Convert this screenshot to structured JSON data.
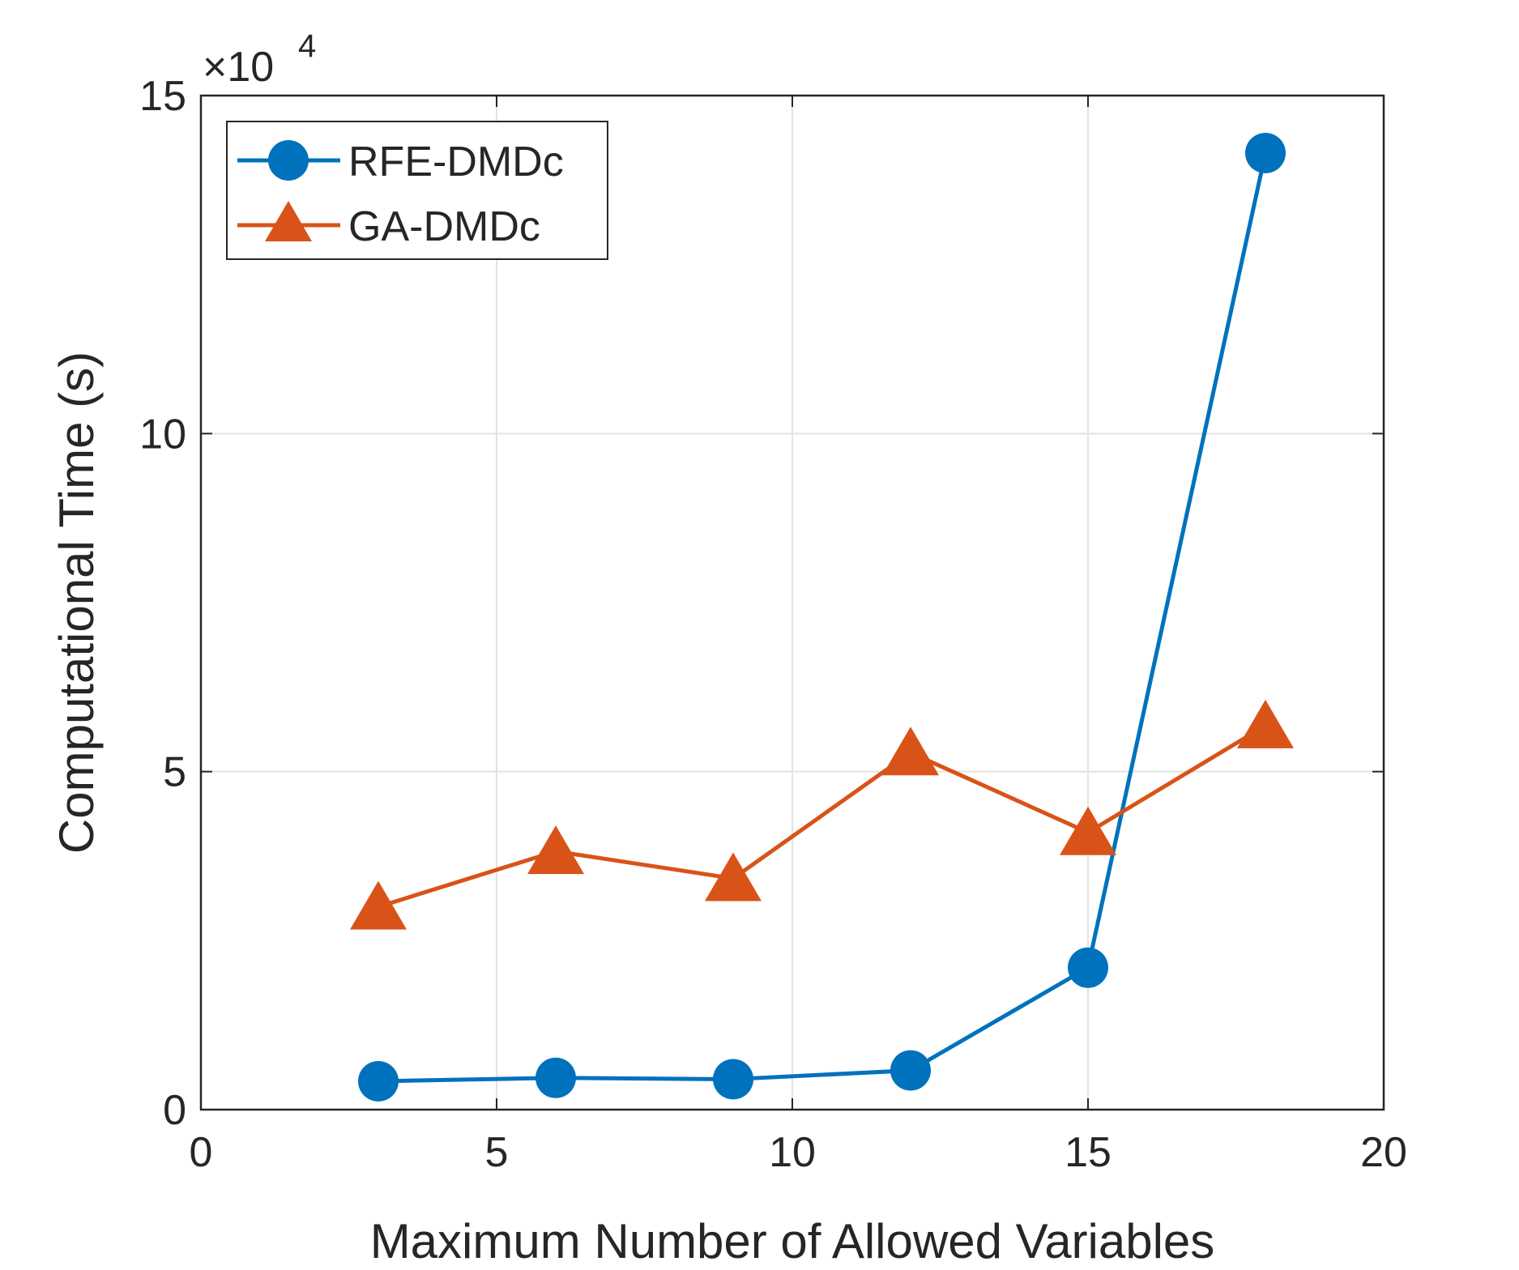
{
  "chart_data": {
    "type": "line",
    "title": "",
    "xlabel": "Maximum Number of Allowed Variables",
    "ylabel": "Computational Time (s)",
    "y_multiplier_label": "×10",
    "y_multiplier_exponent": "4",
    "xlim": [
      0,
      20
    ],
    "ylim": [
      0,
      15
    ],
    "xticks": [
      0,
      5,
      10,
      15,
      20
    ],
    "xtick_labels": [
      "0",
      "5",
      "10",
      "15",
      "20"
    ],
    "yticks": [
      0,
      5,
      10,
      15
    ],
    "ytick_labels": [
      "0",
      "5",
      "10",
      "15"
    ],
    "grid": true,
    "legend_position": "top-left",
    "x": [
      3,
      6,
      9,
      12,
      15,
      18
    ],
    "series": [
      {
        "name": "RFE-DMDc",
        "color": "#0072BD",
        "marker": "circle",
        "values": [
          0.42,
          0.47,
          0.45,
          0.58,
          2.1,
          14.15
        ]
      },
      {
        "name": "GA-DMDc",
        "color": "#D95319",
        "marker": "triangle",
        "values": [
          3.0,
          3.82,
          3.42,
          5.28,
          4.1,
          5.68
        ]
      }
    ]
  }
}
